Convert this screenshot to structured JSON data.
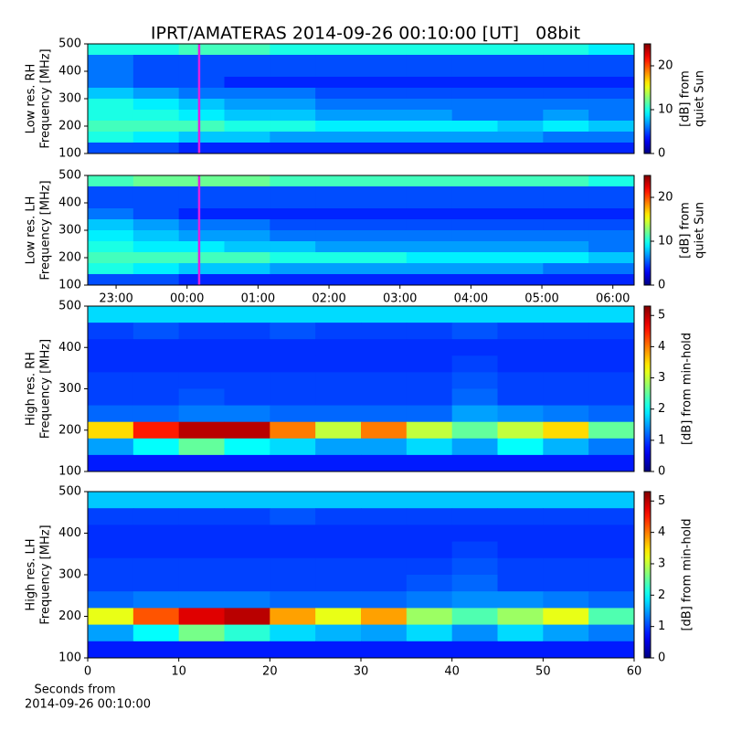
{
  "chart_data": [
    {
      "type": "heatmap",
      "title": "IPRT/AMATERAS 2014-09-26 00:10:00 [UT]   08bit",
      "ylabel": [
        "Low res. RH",
        "Frequency [MHz]"
      ],
      "colorbar_label": [
        "[dB] from",
        "quiet Sun"
      ],
      "colormap": "jet",
      "xlim": [
        22.6,
        30.3
      ],
      "ylim": [
        100,
        500
      ],
      "yticks": [
        100,
        200,
        300,
        400,
        500
      ],
      "clim": [
        0,
        25
      ],
      "cticks": [
        0,
        10,
        20
      ],
      "marker_x": 24.17,
      "marker_color": "#e020e0",
      "z": [
        [
          10,
          10,
          11,
          11,
          10,
          10,
          10,
          10,
          10,
          10,
          10,
          9
        ],
        [
          6,
          5,
          5,
          5,
          5,
          5,
          5,
          5,
          5,
          5,
          5,
          5
        ],
        [
          6,
          5,
          5,
          5,
          5,
          5,
          5,
          5,
          5,
          5,
          5,
          5
        ],
        [
          6,
          5,
          5,
          4,
          4,
          4,
          4,
          4,
          4,
          4,
          4,
          4
        ],
        [
          8,
          7,
          6,
          6,
          6,
          5,
          5,
          5,
          5,
          5,
          5,
          5
        ],
        [
          10,
          9,
          8,
          7,
          7,
          6,
          6,
          6,
          6,
          6,
          6,
          6
        ],
        [
          10,
          10,
          9,
          8,
          8,
          7,
          7,
          7,
          6,
          6,
          7,
          6
        ],
        [
          11,
          11,
          11,
          10,
          10,
          9,
          9,
          9,
          9,
          8,
          9,
          8
        ],
        [
          10,
          9,
          8,
          8,
          7,
          7,
          7,
          7,
          7,
          7,
          6,
          6
        ],
        [
          5,
          5,
          4,
          4,
          4,
          4,
          4,
          4,
          4,
          4,
          4,
          4
        ]
      ]
    },
    {
      "type": "heatmap",
      "ylabel": [
        "Low res. LH",
        "Frequency [MHz]"
      ],
      "colorbar_label": [
        "[dB] from",
        "quiet Sun"
      ],
      "colormap": "jet",
      "xlim": [
        22.6,
        30.3
      ],
      "ylim": [
        100,
        500
      ],
      "yticks": [
        100,
        200,
        300,
        400,
        500
      ],
      "xticks": [
        {
          "value": 23,
          "label": "23:00"
        },
        {
          "value": 24,
          "label": "00:00"
        },
        {
          "value": 25,
          "label": "01:00"
        },
        {
          "value": 26,
          "label": "02:00"
        },
        {
          "value": 27,
          "label": "03:00"
        },
        {
          "value": 28,
          "label": "04:00"
        },
        {
          "value": 29,
          "label": "05:00"
        },
        {
          "value": 30,
          "label": "06:00"
        }
      ],
      "clim": [
        0,
        25
      ],
      "cticks": [
        0,
        10,
        20
      ],
      "marker_x": 24.17,
      "marker_color": "#e020e0",
      "z": [
        [
          11,
          12,
          12,
          12,
          11,
          11,
          11,
          11,
          11,
          11,
          11,
          10
        ],
        [
          5,
          5,
          5,
          5,
          5,
          5,
          5,
          5,
          5,
          5,
          5,
          5
        ],
        [
          5,
          5,
          5,
          5,
          5,
          5,
          5,
          5,
          5,
          5,
          5,
          5
        ],
        [
          6,
          5,
          4,
          4,
          4,
          4,
          4,
          4,
          4,
          4,
          4,
          4
        ],
        [
          8,
          7,
          6,
          6,
          5,
          5,
          5,
          5,
          5,
          5,
          5,
          5
        ],
        [
          9,
          8,
          7,
          7,
          6,
          6,
          6,
          6,
          6,
          6,
          6,
          6
        ],
        [
          10,
          9,
          9,
          8,
          8,
          7,
          7,
          7,
          7,
          7,
          7,
          6
        ],
        [
          11,
          11,
          11,
          11,
          10,
          10,
          10,
          9,
          9,
          9,
          9,
          8
        ],
        [
          10,
          9,
          8,
          8,
          7,
          7,
          7,
          7,
          7,
          7,
          6,
          6
        ],
        [
          5,
          5,
          4,
          4,
          4,
          4,
          4,
          4,
          4,
          4,
          4,
          4
        ]
      ]
    },
    {
      "type": "heatmap",
      "ylabel": [
        "High res. RH",
        "Frequency [MHz]"
      ],
      "colorbar_label": [
        "[dB] from min-hold"
      ],
      "colormap": "jet",
      "xlim": [
        0,
        60
      ],
      "ylim": [
        100,
        500
      ],
      "yticks": [
        100,
        200,
        300,
        400,
        500
      ],
      "clim": [
        0,
        5.3
      ],
      "cticks": [
        0,
        1,
        2,
        3,
        4,
        5
      ],
      "z": [
        [
          1.8,
          1.8,
          1.8,
          1.8,
          1.8,
          1.8,
          1.8,
          1.8,
          1.8,
          1.8,
          1.8,
          1.8
        ],
        [
          1.0,
          1.1,
          1.0,
          1.0,
          1.1,
          1.0,
          1.0,
          1.0,
          1.1,
          1.0,
          1.0,
          1.0
        ],
        [
          0.9,
          0.9,
          0.9,
          0.9,
          0.9,
          0.9,
          0.9,
          0.9,
          0.9,
          0.9,
          0.9,
          0.9
        ],
        [
          0.9,
          0.9,
          0.9,
          0.9,
          0.9,
          0.9,
          0.9,
          0.9,
          1.0,
          0.9,
          0.9,
          0.9
        ],
        [
          1.0,
          1.0,
          1.0,
          1.0,
          1.0,
          1.0,
          1.0,
          1.0,
          1.1,
          1.0,
          1.0,
          1.0
        ],
        [
          1.0,
          1.0,
          1.1,
          1.0,
          1.0,
          1.0,
          1.0,
          1.0,
          1.2,
          1.0,
          1.0,
          1.0
        ],
        [
          1.2,
          1.2,
          1.3,
          1.3,
          1.2,
          1.2,
          1.2,
          1.2,
          1.5,
          1.4,
          1.3,
          1.2
        ],
        [
          3.5,
          4.5,
          5,
          5,
          4,
          3,
          4,
          3,
          2.5,
          3,
          3.5,
          2.5
        ],
        [
          1.5,
          2,
          2.5,
          2,
          1.8,
          1.5,
          1.5,
          1.8,
          1.5,
          2,
          1.6,
          1.3
        ],
        [
          0.8,
          0.8,
          0.8,
          0.8,
          0.8,
          0.8,
          0.8,
          0.8,
          0.8,
          0.8,
          0.8,
          0.8
        ]
      ]
    },
    {
      "type": "heatmap",
      "ylabel": [
        "High res. LH",
        "Frequency [MHz]"
      ],
      "colorbar_label": [
        "[dB] from min-hold"
      ],
      "xlabel": [
        "Seconds from",
        "2014-09-26 00:10:00"
      ],
      "colormap": "jet",
      "xlim": [
        0,
        60
      ],
      "ylim": [
        100,
        500
      ],
      "yticks": [
        100,
        200,
        300,
        400,
        500
      ],
      "xticks": [
        0,
        10,
        20,
        30,
        40,
        50,
        60
      ],
      "clim": [
        0,
        5.3
      ],
      "cticks": [
        0,
        1,
        2,
        3,
        4,
        5
      ],
      "z": [
        [
          1.7,
          1.7,
          1.7,
          1.7,
          1.7,
          1.7,
          1.7,
          1.7,
          1.7,
          1.7,
          1.7,
          1.7
        ],
        [
          1.0,
          1.0,
          1.0,
          1.0,
          1.1,
          1.0,
          1.0,
          1.0,
          1.0,
          1.0,
          1.0,
          1.0
        ],
        [
          0.9,
          0.9,
          0.9,
          0.9,
          0.9,
          0.9,
          0.9,
          0.9,
          0.9,
          0.9,
          0.9,
          0.9
        ],
        [
          0.9,
          0.9,
          0.9,
          0.9,
          0.9,
          0.9,
          0.9,
          0.9,
          1.0,
          0.9,
          0.9,
          0.9
        ],
        [
          1.0,
          1.0,
          1.0,
          1.0,
          1.0,
          1.0,
          1.0,
          1.0,
          1.1,
          1.0,
          1.0,
          1.0
        ],
        [
          1.0,
          1.0,
          1.0,
          1.0,
          1.0,
          1.0,
          1.0,
          1.1,
          1.2,
          1.0,
          1.0,
          1.0
        ],
        [
          1.2,
          1.3,
          1.3,
          1.3,
          1.2,
          1.2,
          1.2,
          1.3,
          1.4,
          1.4,
          1.3,
          1.2
        ],
        [
          3.2,
          4.2,
          4.8,
          5,
          3.8,
          3.2,
          3.8,
          2.8,
          2.4,
          2.8,
          3.2,
          2.4
        ],
        [
          1.5,
          2,
          2.6,
          2.2,
          1.8,
          1.6,
          1.5,
          1.8,
          1.4,
          1.8,
          1.5,
          1.3
        ],
        [
          0.8,
          0.8,
          0.8,
          0.8,
          0.8,
          0.8,
          0.8,
          0.8,
          0.8,
          0.8,
          0.8,
          0.8
        ]
      ]
    }
  ]
}
